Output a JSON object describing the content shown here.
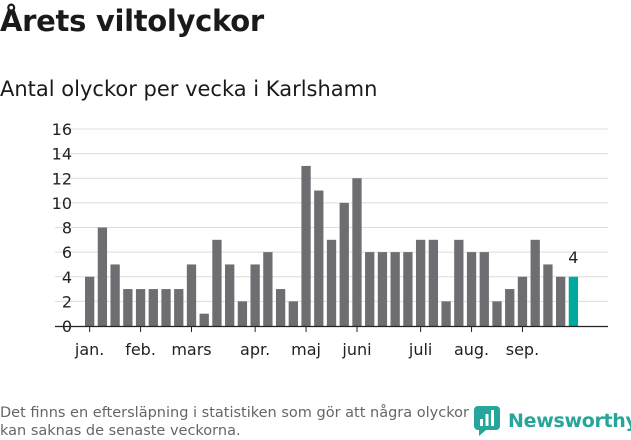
{
  "title": "Årets viltolyckor",
  "subtitle": "Antal olyckor per vecka i Karlshamn",
  "footnote": "Det finns en eftersläpning i statistiken som gör att några olyckor kan saknas de senaste veckorna.",
  "brand": {
    "name": "Newsworthy",
    "icon": "newsworthy-logo-icon",
    "color": "#26a69a"
  },
  "chart_data": {
    "type": "bar",
    "title": "",
    "xlabel": "",
    "ylabel": "",
    "ylim": [
      0,
      16
    ],
    "yticks": [
      0,
      2,
      4,
      6,
      8,
      10,
      12,
      14,
      16
    ],
    "grid": true,
    "bar_color": "#6e6d72",
    "highlight_color": "#00a99d",
    "values": [
      4,
      8,
      5,
      3,
      3,
      3,
      3,
      3,
      5,
      1,
      7,
      5,
      2,
      5,
      6,
      3,
      2,
      13,
      11,
      7,
      10,
      12,
      6,
      6,
      6,
      6,
      7,
      7,
      2,
      7,
      6,
      6,
      2,
      3,
      4,
      7,
      5,
      4,
      4
    ],
    "highlight_index": 38,
    "highlight_label": "4",
    "month_labels": [
      {
        "label": "jan.",
        "index": 0
      },
      {
        "label": "feb.",
        "index": 4
      },
      {
        "label": "mars",
        "index": 8
      },
      {
        "label": "apr.",
        "index": 13
      },
      {
        "label": "maj",
        "index": 17
      },
      {
        "label": "juni",
        "index": 21
      },
      {
        "label": "juli",
        "index": 26
      },
      {
        "label": "aug.",
        "index": 30
      },
      {
        "label": "sep.",
        "index": 34
      }
    ]
  }
}
